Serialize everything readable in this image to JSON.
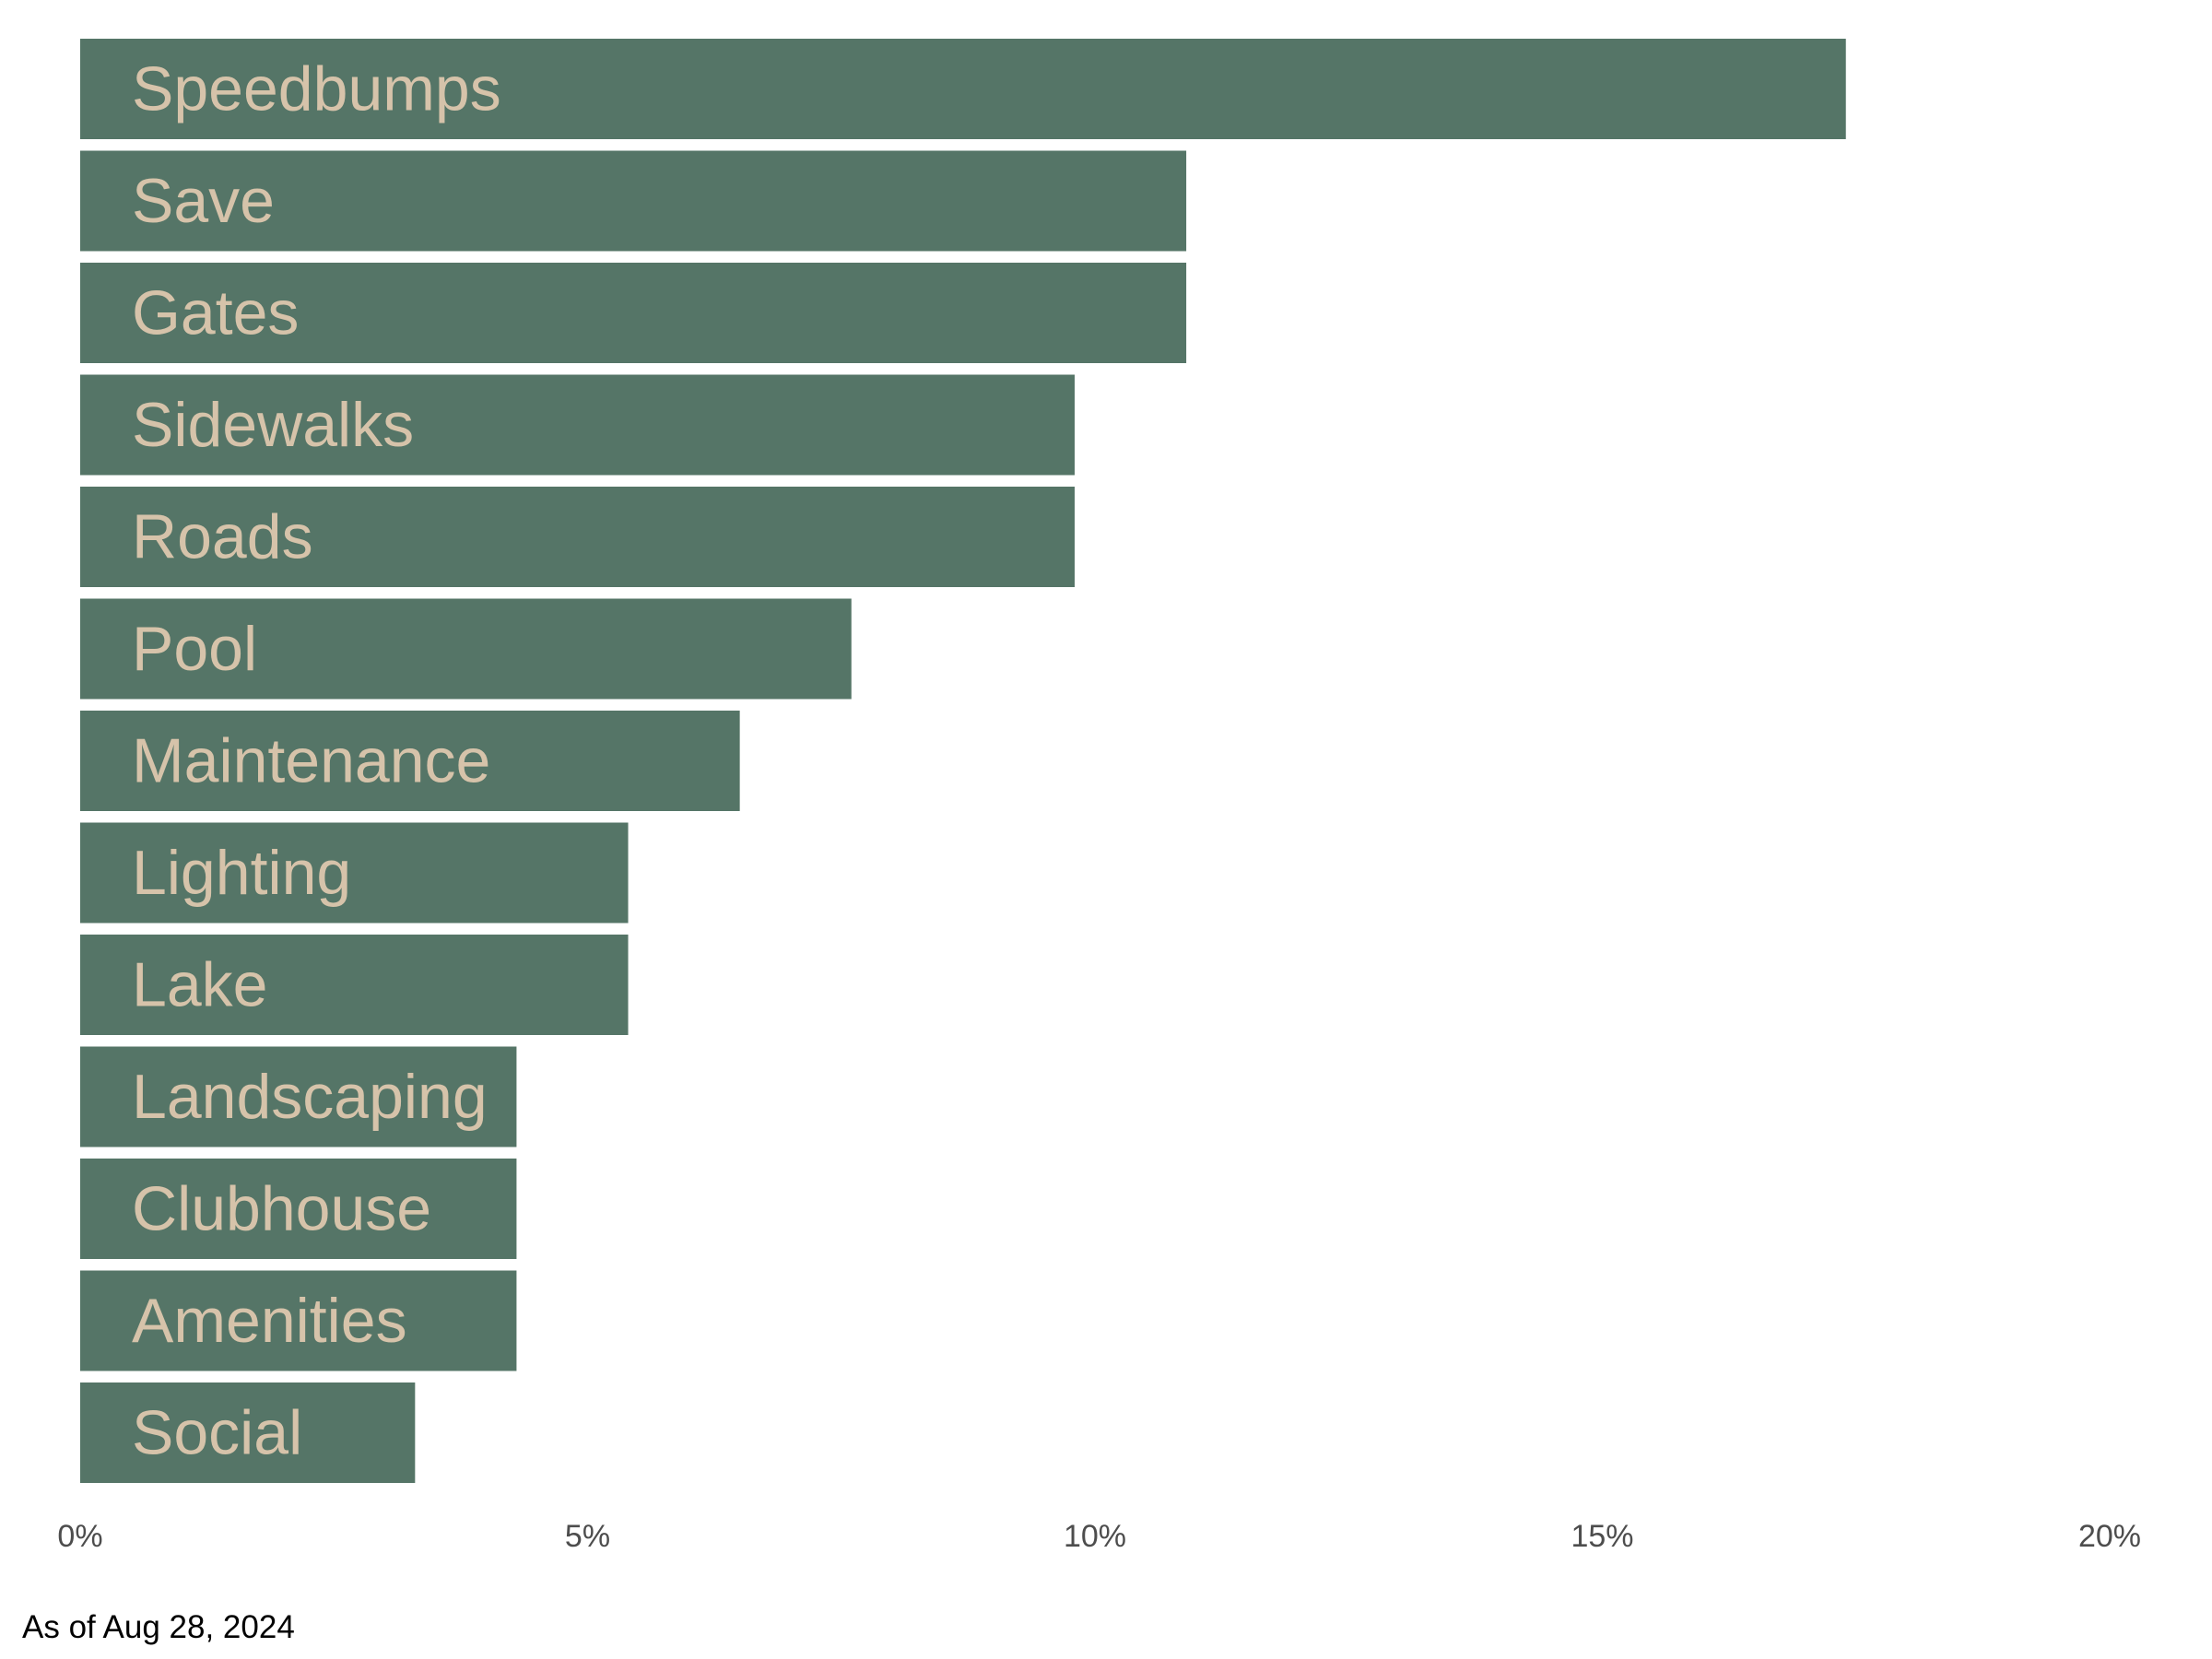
{
  "chart_data": {
    "type": "bar",
    "orientation": "horizontal",
    "categories": [
      "Speedbumps",
      "Save",
      "Gates",
      "Sidewalks",
      "Roads",
      "Pool",
      "Maintenance",
      "Lighting",
      "Lake",
      "Landscaping",
      "Clubhouse",
      "Amenities",
      "Social"
    ],
    "values": [
      17.4,
      10.9,
      10.9,
      9.8,
      9.8,
      7.6,
      6.5,
      5.4,
      5.4,
      4.3,
      4.3,
      4.3,
      3.3
    ],
    "xlim": [
      0,
      20
    ],
    "ticks": [
      0,
      5,
      10,
      15,
      20
    ],
    "tick_labels": [
      "0%",
      "5%",
      "10%",
      "15%",
      "20%"
    ],
    "title": "",
    "xlabel": "",
    "ylabel": "",
    "grid": false,
    "legend": "none"
  },
  "caption": "As of Aug 28, 2024",
  "colors": {
    "bar": "#557567",
    "bar_label": "#d6c3aa",
    "tick_label": "#4d4d4d",
    "caption": "#000000"
  }
}
